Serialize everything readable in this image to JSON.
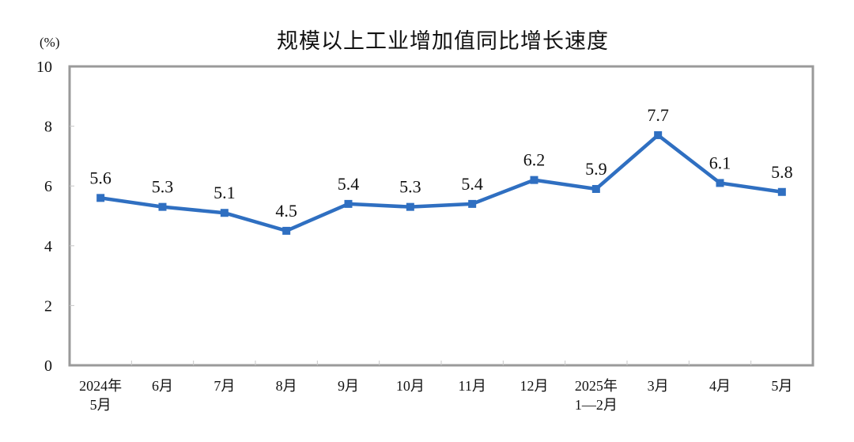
{
  "chart_data": {
    "type": "line",
    "title": "规模以上工业增加值同比增长速度",
    "ylabel": "(%)",
    "xlabel": "",
    "ylim": [
      0,
      10
    ],
    "yticks": [
      0,
      2,
      4,
      6,
      8,
      10
    ],
    "grid": false,
    "legend": null,
    "categories": [
      [
        "2024年",
        "5月"
      ],
      [
        "6月"
      ],
      [
        "7月"
      ],
      [
        "8月"
      ],
      [
        "9月"
      ],
      [
        "10月"
      ],
      [
        "11月"
      ],
      [
        "12月"
      ],
      [
        "2025年",
        "1—2月"
      ],
      [
        "3月"
      ],
      [
        "4月"
      ],
      [
        "5月"
      ]
    ],
    "series": [
      {
        "name": "规模以上工业增加值同比增长速度",
        "values": [
          5.6,
          5.3,
          5.1,
          4.5,
          5.4,
          5.3,
          5.4,
          6.2,
          5.9,
          7.7,
          6.1,
          5.8
        ],
        "data_labels": [
          "5.6",
          "5.3",
          "5.1",
          "4.5",
          "5.4",
          "5.3",
          "5.4",
          "6.2",
          "5.9",
          "7.7",
          "6.1",
          "5.8"
        ],
        "color": "#2F6FC1",
        "marker": "square"
      }
    ]
  },
  "colors": {
    "line": "#2F6FC1",
    "axis": "#9A9A9A",
    "text": "#111111"
  }
}
